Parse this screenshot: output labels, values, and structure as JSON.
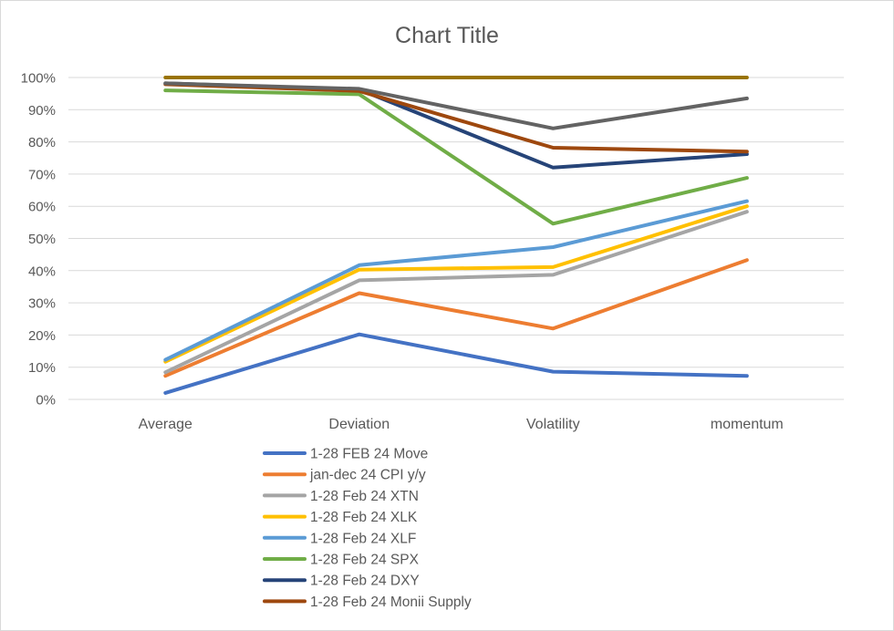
{
  "chart_data": {
    "type": "line",
    "title": "Chart Title",
    "categories": [
      "Average",
      "Deviation",
      "Volatility",
      "momentum"
    ],
    "y_ticks": [
      "0%",
      "10%",
      "20%",
      "30%",
      "40%",
      "50%",
      "60%",
      "70%",
      "80%",
      "90%",
      "100%"
    ],
    "ylim": [
      0,
      100
    ],
    "grid": true,
    "legend_position": "bottom",
    "series": [
      {
        "name": "1-28 FEB 24 Move",
        "color": "#4472c4",
        "values": [
          2,
          20.2,
          8.6,
          7.3
        ]
      },
      {
        "name": "jan-dec 24 CPI y/y",
        "color": "#ed7d31",
        "values": [
          7.3,
          33,
          22,
          43.3
        ]
      },
      {
        "name": "1-28 Feb 24 XTN",
        "color": "#a5a5a5",
        "values": [
          8.4,
          37,
          38.7,
          58.3
        ]
      },
      {
        "name": "1-28 Feb 24 XLK",
        "color": "#ffc000",
        "values": [
          11.7,
          40.3,
          41.1,
          60
        ]
      },
      {
        "name": "1-28 Feb 24 XLF",
        "color": "#5b9bd5",
        "values": [
          12.3,
          41.7,
          47.3,
          61.6
        ]
      },
      {
        "name": "1-28 Feb 24 SPX",
        "color": "#70ad47",
        "values": [
          96,
          94.8,
          54.6,
          68.8
        ]
      },
      {
        "name": "1-28 Feb 24 DXY",
        "color": "#264478",
        "values": [
          98.2,
          96.3,
          72,
          76.2
        ]
      },
      {
        "name": "1-28 Feb 24 Monii Supply",
        "color": "#9e480e",
        "values": [
          97.9,
          95.8,
          78.2,
          77
        ]
      },
      {
        "name": "",
        "color": "#636363",
        "values": [
          98.2,
          96.5,
          84.2,
          93.5
        ]
      },
      {
        "name": "",
        "color": "#997300",
        "values": [
          100,
          100,
          100,
          100
        ]
      }
    ]
  }
}
